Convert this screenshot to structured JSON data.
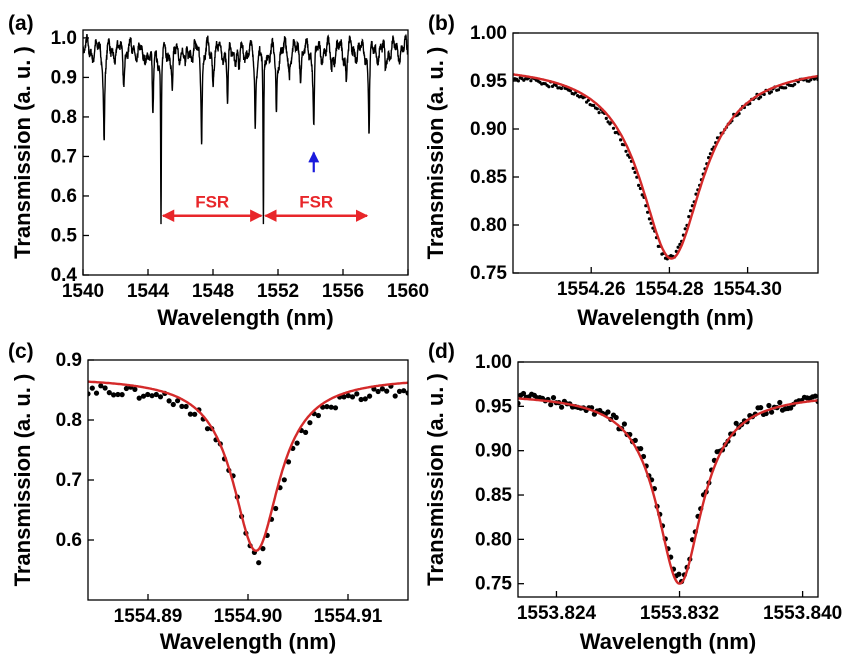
{
  "chart_data": [
    {
      "panel": "(a)",
      "type": "line",
      "xlabel": "Wavelength (nm)",
      "ylabel": "Transmission (a. u. )",
      "xlim": [
        1540,
        1560
      ],
      "ylim": [
        0.4,
        1.02
      ],
      "xticks": [
        "1540",
        "1544",
        "1548",
        "1552",
        "1556",
        "1560"
      ],
      "yticks": [
        "0.4",
        "0.5",
        "0.6",
        "0.7",
        "0.8",
        "0.9",
        "1.0"
      ],
      "baseline": 0.97,
      "dips": [
        {
          "x": 1541.3,
          "depth": 0.23
        },
        {
          "x": 1542.5,
          "depth": 0.07
        },
        {
          "x": 1543.7,
          "depth": 0.05
        },
        {
          "x": 1544.3,
          "depth": 0.18
        },
        {
          "x": 1544.8,
          "depth": 0.45
        },
        {
          "x": 1545.5,
          "depth": 0.12
        },
        {
          "x": 1546.3,
          "depth": 0.06
        },
        {
          "x": 1547.3,
          "depth": 0.21
        },
        {
          "x": 1548.0,
          "depth": 0.07
        },
        {
          "x": 1548.9,
          "depth": 0.14
        },
        {
          "x": 1549.6,
          "depth": 0.06
        },
        {
          "x": 1550.6,
          "depth": 0.19
        },
        {
          "x": 1551.1,
          "depth": 0.47
        },
        {
          "x": 1551.9,
          "depth": 0.17
        },
        {
          "x": 1552.7,
          "depth": 0.06
        },
        {
          "x": 1553.4,
          "depth": 0.05
        },
        {
          "x": 1554.2,
          "depth": 0.18
        },
        {
          "x": 1555.3,
          "depth": 0.05
        },
        {
          "x": 1556.2,
          "depth": 0.07
        },
        {
          "x": 1557.6,
          "depth": 0.19
        },
        {
          "x": 1558.6,
          "depth": 0.05
        }
      ],
      "annotations": [
        {
          "text": "FSR",
          "x_from": 1544.8,
          "x_to": 1551.1,
          "y": 0.55
        },
        {
          "text": "FSR",
          "x_from": 1551.1,
          "x_to": 1557.6,
          "y": 0.55
        }
      ],
      "marker_arrow": {
        "x": 1554.2,
        "y_from": 0.66,
        "y_to": 0.71,
        "color": "#1a1adc"
      }
    },
    {
      "panel": "(b)",
      "type": "scatter",
      "xlabel": "Wavelength (nm)",
      "ylabel": "Transmission (a. u. )",
      "xlim": [
        1554.24,
        1554.318
      ],
      "ylim": [
        0.75,
        1.0
      ],
      "xticks": [
        "1554.26",
        "1554.28",
        "1554.30"
      ],
      "yticks": [
        "0.75",
        "0.80",
        "0.85",
        "0.90",
        "0.95",
        "1.00"
      ],
      "series": [
        {
          "kind": "points",
          "x0": 1554.28,
          "gamma": 0.0195,
          "offset": 0.965,
          "depth": 0.2
        },
        {
          "kind": "fit",
          "x0": 1554.2805,
          "gamma": 0.0195,
          "offset": 0.968,
          "depth": 0.203,
          "color": "#d42a2a"
        }
      ]
    },
    {
      "panel": "(c)",
      "type": "scatter",
      "xlabel": "Wavelength (nm)",
      "ylabel": "Transmission (a. u. )",
      "xlim": [
        1554.884,
        1554.916
      ],
      "ylim": [
        0.5,
        0.9
      ],
      "xticks": [
        "1554.89",
        "1554.90",
        "1554.91"
      ],
      "yticks": [
        "0.6",
        "0.7",
        "0.8",
        "0.9"
      ],
      "series": [
        {
          "kind": "points",
          "x0": 1554.901,
          "gamma": 0.0055,
          "offset": 0.86,
          "depth": 0.29
        },
        {
          "kind": "fit",
          "x0": 1554.9008,
          "gamma": 0.0057,
          "offset": 0.872,
          "depth": 0.29,
          "color": "#d42a2a"
        }
      ]
    },
    {
      "panel": "(d)",
      "type": "scatter",
      "xlabel": "Wavelength (nm)",
      "ylabel": "Transmission (a. u. )",
      "xlim": [
        1553.8215,
        1553.841
      ],
      "ylim": [
        0.735,
        1.0
      ],
      "xticks": [
        "1553.824",
        "1553.832",
        "1553.840"
      ],
      "yticks": [
        "0.75",
        "0.80",
        "0.85",
        "0.90",
        "0.95",
        "1.00"
      ],
      "series": [
        {
          "kind": "points",
          "x0": 1553.832,
          "gamma": 0.0035,
          "offset": 0.965,
          "depth": 0.21
        },
        {
          "kind": "fit",
          "x0": 1553.832,
          "gamma": 0.0036,
          "offset": 0.965,
          "depth": 0.215,
          "color": "#d42a2a"
        }
      ]
    }
  ]
}
